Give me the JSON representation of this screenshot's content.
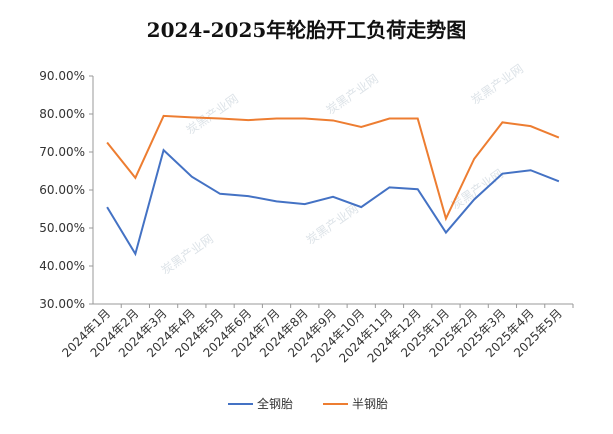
{
  "chart_data": {
    "type": "line",
    "title": "2024-2025年轮胎开工负荷走势图",
    "categories": [
      "2024年1月",
      "2024年2月",
      "2024年3月",
      "2024年4月",
      "2024年5月",
      "2024年6月",
      "2024年7月",
      "2024年8月",
      "2024年9月",
      "2024年10月",
      "2024年11月",
      "2024年12月",
      "2025年1月",
      "2025年2月",
      "2025年3月",
      "2025年4月",
      "2025年5月"
    ],
    "series": [
      {
        "name": "全钢胎",
        "color": "#4472c4",
        "values": [
          55.5,
          43.2,
          70.5,
          63.5,
          59.0,
          58.4,
          57.0,
          56.3,
          58.2,
          55.5,
          60.7,
          60.2,
          48.8,
          57.5,
          64.3,
          65.2,
          62.3
        ]
      },
      {
        "name": "半钢胎",
        "color": "#ed7d31",
        "values": [
          72.5,
          63.2,
          79.5,
          79.1,
          78.8,
          78.4,
          78.8,
          78.8,
          78.3,
          76.6,
          78.8,
          78.8,
          52.5,
          68.2,
          77.8,
          76.8,
          73.8
        ]
      }
    ],
    "ylim": [
      30,
      90
    ],
    "yticks": [
      "30.00%",
      "40.00%",
      "50.00%",
      "60.00%",
      "70.00%",
      "80.00%",
      "90.00%"
    ],
    "legend": "bottom",
    "watermark": "炭黑产业网"
  }
}
